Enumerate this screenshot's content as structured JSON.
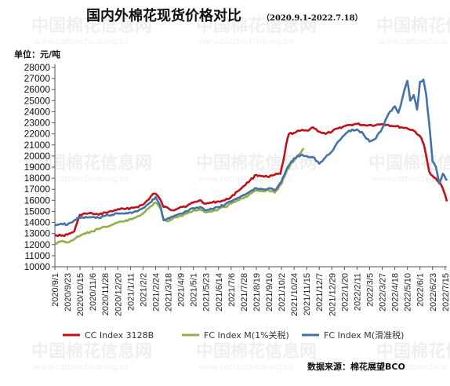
{
  "chart_data": {
    "type": "line",
    "title": "国内外棉花现货价格对比",
    "subtitle": "（2020.9.1-2022.7.18）",
    "ylabel": "单位：元/吨",
    "xlabel": "",
    "ylim": [
      10000,
      28000
    ],
    "yticks": [
      10000,
      11000,
      12000,
      13000,
      14000,
      15000,
      16000,
      17000,
      18000,
      19000,
      20000,
      21000,
      22000,
      23000,
      24000,
      25000,
      26000,
      27000,
      28000
    ],
    "x_tick_labels": [
      "2020/9/1",
      "2020/9/23",
      "2020/10/15",
      "2020/11/6",
      "2020/11/28",
      "2020/12/20",
      "2021/1/11",
      "2021/2/2",
      "2021/2/24",
      "2021/3/18",
      "2021/4/9",
      "2021/5/1",
      "2021/5/23",
      "2021/6/14",
      "2021/7/6",
      "2021/7/28",
      "2021/8/19",
      "2021/9/10",
      "2021/10/2",
      "2021/10/24",
      "2021/11/15",
      "2021/12/7",
      "2021/12/29",
      "2022/1/20",
      "2022/2/11",
      "2022/3/5",
      "2022/3/27",
      "2022/4/18",
      "2022/5/10",
      "2022/6/1",
      "2022/6/23",
      "2022/7/15"
    ],
    "x_range": [
      "2020-09-01",
      "2022-07-18"
    ],
    "grid": false,
    "legend_position": "bottom",
    "series": [
      {
        "name": "CC Index 3128B",
        "color": "#c0101a",
        "points": [
          [
            "2020-09-01",
            12900
          ],
          [
            "2020-09-12",
            12800
          ],
          [
            "2020-09-23",
            12900
          ],
          [
            "2020-10-05",
            13200
          ],
          [
            "2020-10-10",
            14000
          ],
          [
            "2020-10-15",
            14700
          ],
          [
            "2020-10-25",
            14800
          ],
          [
            "2020-11-06",
            14800
          ],
          [
            "2020-11-17",
            14700
          ],
          [
            "2020-11-28",
            14900
          ],
          [
            "2020-12-10",
            15000
          ],
          [
            "2020-12-20",
            15200
          ],
          [
            "2021-01-01",
            15200
          ],
          [
            "2021-01-11",
            15300
          ],
          [
            "2021-01-22",
            15400
          ],
          [
            "2021-02-02",
            15600
          ],
          [
            "2021-02-10",
            16000
          ],
          [
            "2021-02-20",
            16600
          ],
          [
            "2021-02-24",
            16600
          ],
          [
            "2021-03-05",
            16000
          ],
          [
            "2021-03-10",
            15400
          ],
          [
            "2021-03-18",
            15300
          ],
          [
            "2021-03-25",
            15100
          ],
          [
            "2021-04-09",
            15400
          ],
          [
            "2021-04-20",
            15500
          ],
          [
            "2021-05-01",
            15800
          ],
          [
            "2021-05-12",
            16000
          ],
          [
            "2021-05-23",
            15700
          ],
          [
            "2021-06-03",
            15800
          ],
          [
            "2021-06-14",
            15900
          ],
          [
            "2021-06-25",
            16000
          ],
          [
            "2021-07-06",
            16300
          ],
          [
            "2021-07-17",
            16800
          ],
          [
            "2021-07-28",
            17300
          ],
          [
            "2021-08-08",
            17800
          ],
          [
            "2021-08-19",
            18300
          ],
          [
            "2021-08-30",
            18200
          ],
          [
            "2021-09-10",
            18100
          ],
          [
            "2021-09-20",
            18300
          ],
          [
            "2021-09-30",
            18400
          ],
          [
            "2021-10-05",
            19500
          ],
          [
            "2021-10-10",
            21000
          ],
          [
            "2021-10-15",
            22000
          ],
          [
            "2021-10-24",
            22100
          ],
          [
            "2021-11-05",
            22300
          ],
          [
            "2021-11-15",
            22300
          ],
          [
            "2021-11-26",
            22600
          ],
          [
            "2021-12-07",
            22200
          ],
          [
            "2021-12-18",
            22000
          ],
          [
            "2021-12-29",
            22200
          ],
          [
            "2022-01-09",
            22500
          ],
          [
            "2022-01-20",
            22700
          ],
          [
            "2022-01-28",
            22800
          ],
          [
            "2022-02-11",
            22900
          ],
          [
            "2022-02-22",
            22800
          ],
          [
            "2022-03-05",
            22800
          ],
          [
            "2022-03-16",
            22800
          ],
          [
            "2022-03-27",
            22900
          ],
          [
            "2022-04-07",
            22800
          ],
          [
            "2022-04-18",
            22700
          ],
          [
            "2022-04-29",
            22600
          ],
          [
            "2022-05-10",
            22500
          ],
          [
            "2022-05-21",
            22300
          ],
          [
            "2022-06-01",
            21800
          ],
          [
            "2022-06-08",
            21000
          ],
          [
            "2022-06-12",
            20000
          ],
          [
            "2022-06-17",
            18600
          ],
          [
            "2022-06-23",
            18200
          ],
          [
            "2022-07-01",
            17800
          ],
          [
            "2022-07-08",
            17400
          ],
          [
            "2022-07-15",
            16500
          ],
          [
            "2022-07-18",
            15900
          ]
        ]
      },
      {
        "name": "FC Index M(1%关税)",
        "color": "#8fb043",
        "points": [
          [
            "2020-09-01",
            12100
          ],
          [
            "2020-09-12",
            12300
          ],
          [
            "2020-09-23",
            12200
          ],
          [
            "2020-10-05",
            12500
          ],
          [
            "2020-10-15",
            12800
          ],
          [
            "2020-10-25",
            13000
          ],
          [
            "2020-11-06",
            13200
          ],
          [
            "2020-11-17",
            13400
          ],
          [
            "2020-11-28",
            13600
          ],
          [
            "2020-12-10",
            13800
          ],
          [
            "2020-12-20",
            14000
          ],
          [
            "2021-01-01",
            14100
          ],
          [
            "2021-01-11",
            14300
          ],
          [
            "2021-01-22",
            14500
          ],
          [
            "2021-02-02",
            14800
          ],
          [
            "2021-02-14",
            15400
          ],
          [
            "2021-02-24",
            15800
          ],
          [
            "2021-03-05",
            15200
          ],
          [
            "2021-03-10",
            14300
          ],
          [
            "2021-03-18",
            14100
          ],
          [
            "2021-03-25",
            14300
          ],
          [
            "2021-04-09",
            14600
          ],
          [
            "2021-04-20",
            14800
          ],
          [
            "2021-05-01",
            15100
          ],
          [
            "2021-05-12",
            15200
          ],
          [
            "2021-05-23",
            14900
          ],
          [
            "2021-06-03",
            15000
          ],
          [
            "2021-06-14",
            15200
          ],
          [
            "2021-06-25",
            15400
          ],
          [
            "2021-07-06",
            15700
          ],
          [
            "2021-07-17",
            16000
          ],
          [
            "2021-07-28",
            16200
          ],
          [
            "2021-08-08",
            16600
          ],
          [
            "2021-08-19",
            16900
          ],
          [
            "2021-08-30",
            16800
          ],
          [
            "2021-09-10",
            16900
          ],
          [
            "2021-09-20",
            16700
          ],
          [
            "2021-10-02",
            17500
          ],
          [
            "2021-10-10",
            18500
          ],
          [
            "2021-10-17",
            19200
          ],
          [
            "2021-10-24",
            19600
          ],
          [
            "2021-11-05",
            20300
          ],
          [
            "2021-11-10",
            20700
          ]
        ]
      },
      {
        "name": "FC Index M(滑准税)",
        "color": "#4472a8",
        "points": [
          [
            "2020-09-01",
            13800
          ],
          [
            "2020-09-12",
            13900
          ],
          [
            "2020-09-23",
            13800
          ],
          [
            "2020-10-05",
            14200
          ],
          [
            "2020-10-15",
            14400
          ],
          [
            "2020-10-25",
            14500
          ],
          [
            "2020-11-06",
            14500
          ],
          [
            "2020-11-17",
            14400
          ],
          [
            "2020-11-28",
            14600
          ],
          [
            "2020-12-10",
            14700
          ],
          [
            "2020-12-20",
            14800
          ],
          [
            "2021-01-01",
            14800
          ],
          [
            "2021-01-11",
            14900
          ],
          [
            "2021-01-22",
            15000
          ],
          [
            "2021-02-02",
            15300
          ],
          [
            "2021-02-14",
            15800
          ],
          [
            "2021-02-24",
            16300
          ],
          [
            "2021-03-05",
            15400
          ],
          [
            "2021-03-10",
            14200
          ],
          [
            "2021-03-18",
            14400
          ],
          [
            "2021-03-25",
            14500
          ],
          [
            "2021-04-09",
            14800
          ],
          [
            "2021-04-20",
            15000
          ],
          [
            "2021-05-01",
            15300
          ],
          [
            "2021-05-12",
            15400
          ],
          [
            "2021-05-23",
            15100
          ],
          [
            "2021-06-03",
            15200
          ],
          [
            "2021-06-14",
            15400
          ],
          [
            "2021-06-25",
            15600
          ],
          [
            "2021-07-06",
            15900
          ],
          [
            "2021-07-17",
            16200
          ],
          [
            "2021-07-28",
            16500
          ],
          [
            "2021-08-08",
            16800
          ],
          [
            "2021-08-19",
            17100
          ],
          [
            "2021-08-30",
            17000
          ],
          [
            "2021-09-10",
            17100
          ],
          [
            "2021-09-20",
            16900
          ],
          [
            "2021-10-02",
            17700
          ],
          [
            "2021-10-10",
            18700
          ],
          [
            "2021-10-17",
            19300
          ],
          [
            "2021-10-24",
            19800
          ],
          [
            "2021-11-05",
            20100
          ],
          [
            "2021-11-15",
            20000
          ],
          [
            "2021-11-26",
            19900
          ],
          [
            "2021-12-07",
            19300
          ],
          [
            "2021-12-18",
            19900
          ],
          [
            "2021-12-29",
            20400
          ],
          [
            "2022-01-09",
            21300
          ],
          [
            "2022-01-20",
            21900
          ],
          [
            "2022-01-28",
            22300
          ],
          [
            "2022-02-11",
            22400
          ],
          [
            "2022-02-22",
            22000
          ],
          [
            "2022-03-05",
            21300
          ],
          [
            "2022-03-16",
            21600
          ],
          [
            "2022-03-27",
            22500
          ],
          [
            "2022-04-07",
            23800
          ],
          [
            "2022-04-18",
            24500
          ],
          [
            "2022-04-24",
            23900
          ],
          [
            "2022-04-29",
            24700
          ],
          [
            "2022-05-05",
            26000
          ],
          [
            "2022-05-10",
            26800
          ],
          [
            "2022-05-15",
            25000
          ],
          [
            "2022-05-21",
            25500
          ],
          [
            "2022-05-27",
            24200
          ],
          [
            "2022-06-01",
            26700
          ],
          [
            "2022-06-07",
            26900
          ],
          [
            "2022-06-12",
            25500
          ],
          [
            "2022-06-17",
            23000
          ],
          [
            "2022-06-23",
            19500
          ],
          [
            "2022-06-29",
            19000
          ],
          [
            "2022-07-05",
            17500
          ],
          [
            "2022-07-11",
            18400
          ],
          [
            "2022-07-18",
            17800
          ]
        ]
      }
    ]
  },
  "source": "数据来源：棉花展望BCO",
  "watermark": {
    "text": "中国棉花信息网",
    "url": "www.cottonchina.org.cn"
  }
}
